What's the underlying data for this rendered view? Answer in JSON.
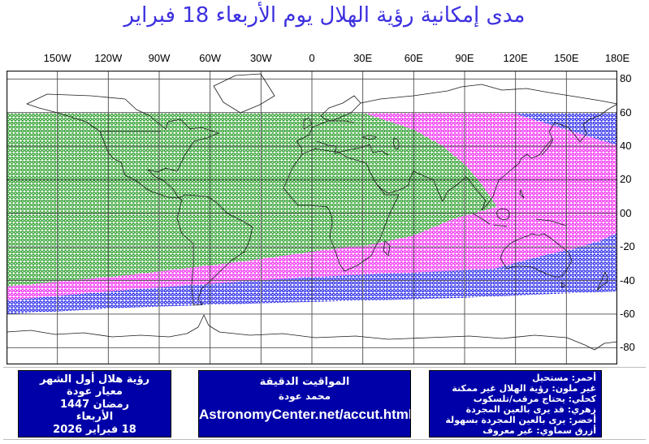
{
  "title": "مدى إمكانية رؤية الهلال يوم الأربعاء 18 فبراير",
  "map": {
    "lon_labels": [
      "150W",
      "120W",
      "90W",
      "60W",
      "30W",
      "0",
      "30E",
      "60E",
      "90E",
      "120E",
      "150E",
      "180E"
    ],
    "lat_labels": [
      "80",
      "60",
      "40",
      "20",
      "00",
      "-20",
      "-40",
      "-60",
      "-80"
    ],
    "zones": [
      {
        "name": "easy-naked-eye",
        "label_ar": "أخضر",
        "color": "#008A00"
      },
      {
        "name": "maybe-naked-eye",
        "label_ar": "زهري",
        "color": "#EE00EE"
      },
      {
        "name": "telescope-needed",
        "label_ar": "كحلي",
        "color": "#0000E6"
      }
    ]
  },
  "boxes": {
    "info": {
      "lines": [
        "رؤية هلال أول الشهر",
        "معيار عودة",
        "رمضان 1447",
        "الأربعاء",
        "18 فبراير 2026"
      ]
    },
    "credit": {
      "lines": [
        "المواقيت الدقيقة",
        "محمد عودة",
        "AstronomyCenter.net/accut.html"
      ]
    },
    "legend": {
      "lines": [
        "أحمر: مستحيل",
        "غير ملون: رؤية الهلال غير ممكنة",
        "كحلي: يحتاج مرقب/تلسكوب",
        "زهري: قد يرى بالعين المجردة",
        "أخضر: يرى بالعين المجردة بسهولة",
        "أزرق سماوي: غير معروف"
      ]
    }
  },
  "colors": {
    "title": "#3C30E0",
    "box_bg": "#0000A8",
    "box_text": "#FFFFFF",
    "grid": "#4d4d4d",
    "frame": "#1a1a1a",
    "coastline": "#1b1b1b",
    "label_text": "#000000"
  }
}
